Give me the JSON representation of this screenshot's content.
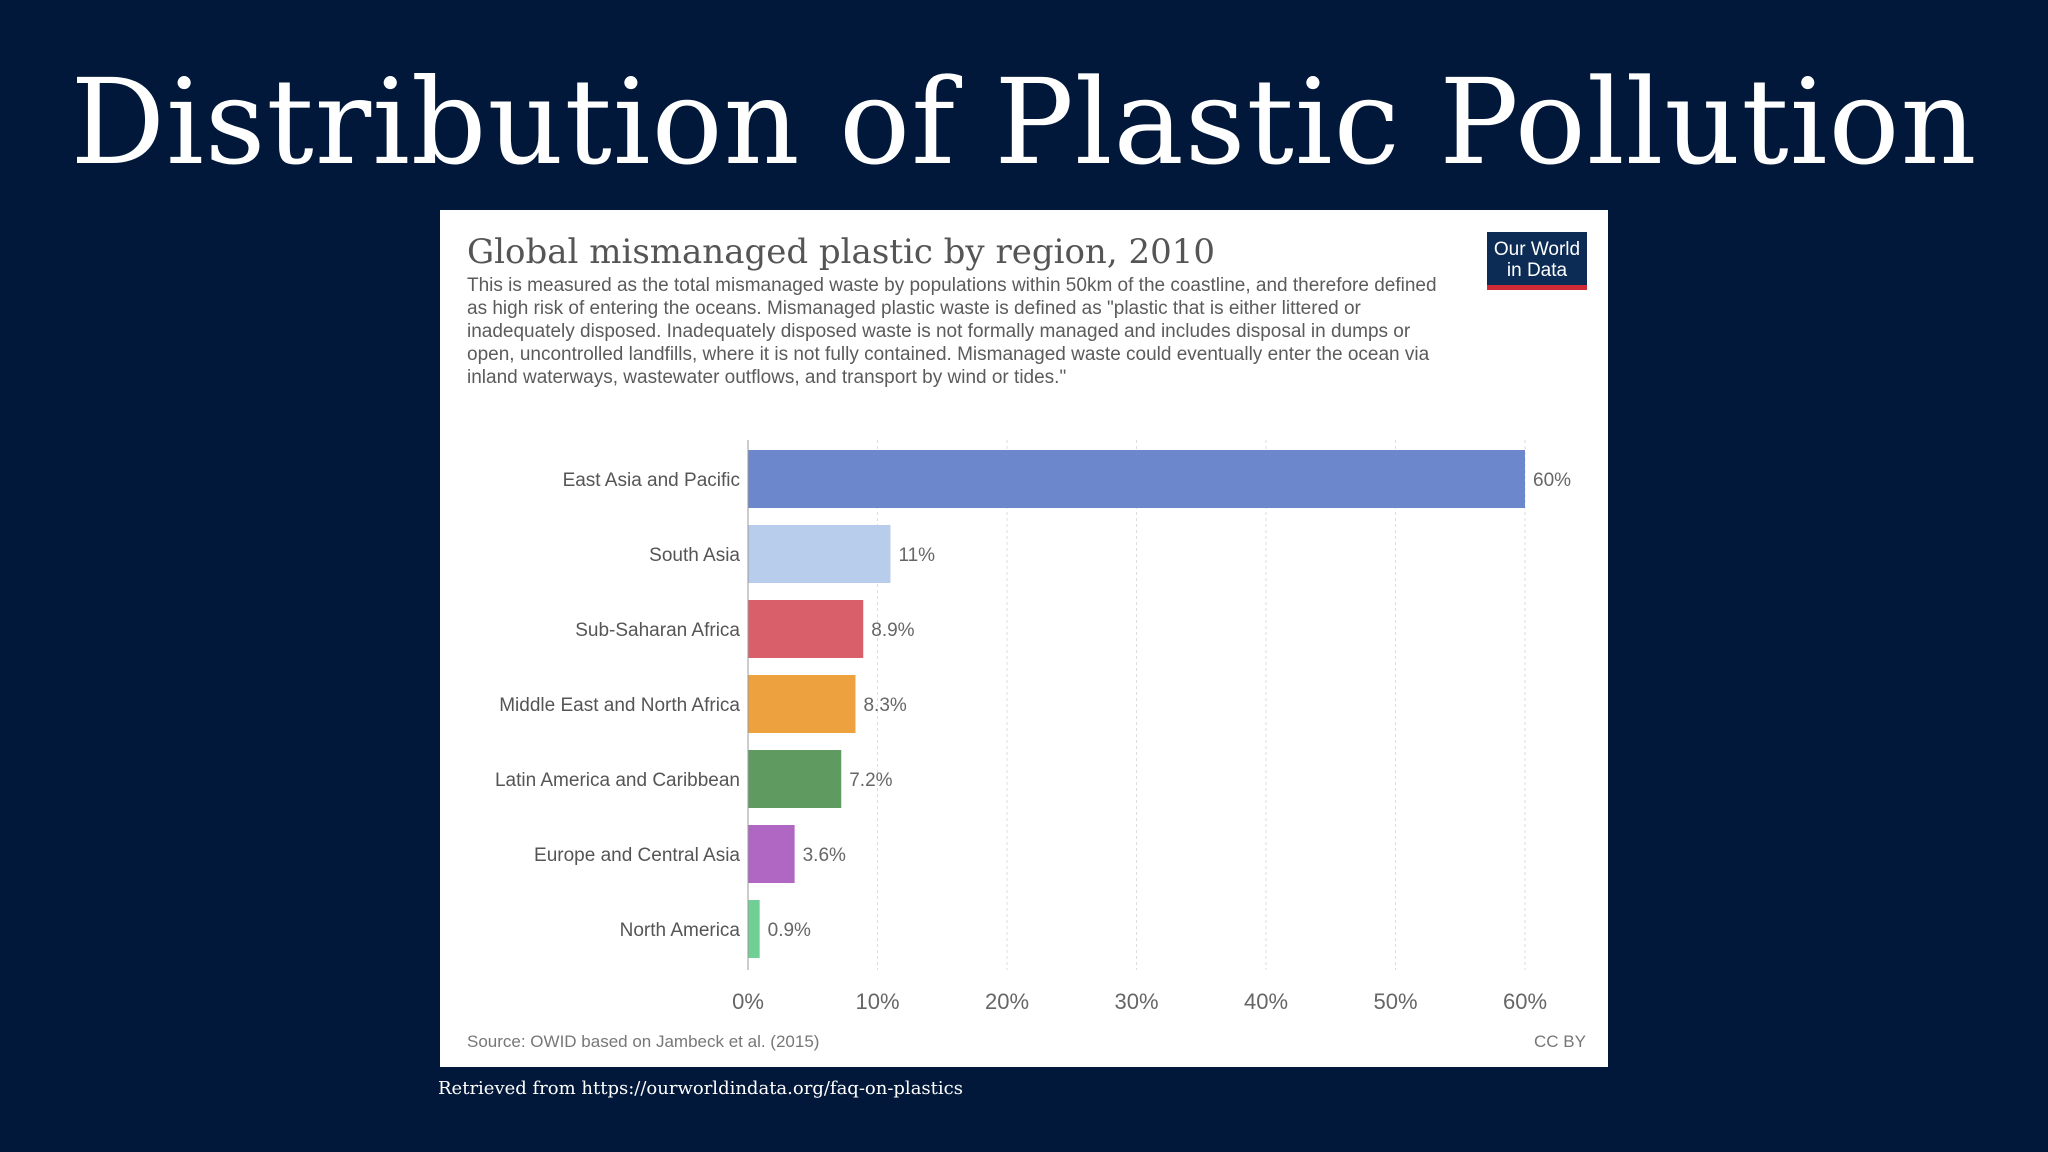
{
  "slide": {
    "title": "Distribution of Plastic Pollution",
    "retrieved_note": "Retrieved from https://ourworldindata.org/faq-on-plastics",
    "background_color": "#02183a"
  },
  "logo": {
    "line1": "Our World",
    "line2": "in Data"
  },
  "chart_data": {
    "type": "bar",
    "orientation": "horizontal",
    "title": "Global mismanaged plastic by region, 2010",
    "subtitle": "This is measured as the total mismanaged waste by populations within 50km of the coastline, and therefore defined as high risk of entering the oceans. Mismanaged plastic waste is defined as \"plastic that is either littered or inadequately disposed. Inadequately disposed waste is not formally managed and includes disposal in dumps or open, uncontrolled landfills, where it is not fully contained. Mismanaged waste could eventually enter the ocean via inland waterways, wastewater outflows, and transport by wind or tides.\"",
    "categories": [
      "East Asia and Pacific",
      "South Asia",
      "Sub-Saharan Africa",
      "Middle East and North Africa",
      "Latin America and Caribbean",
      "Europe and Central Asia",
      "North America"
    ],
    "values": [
      60,
      11,
      8.9,
      8.3,
      7.2,
      3.6,
      0.9
    ],
    "value_labels": [
      "60%",
      "11%",
      "8.9%",
      "8.3%",
      "7.2%",
      "3.6%",
      "0.9%"
    ],
    "colors": [
      "#6d87cc",
      "#b7cdeb",
      "#d9606b",
      "#eea13f",
      "#5f9a61",
      "#b067c4",
      "#6fcf94"
    ],
    "xlim": [
      0,
      60
    ],
    "xticks": [
      0,
      10,
      20,
      30,
      40,
      50,
      60
    ],
    "xtick_labels": [
      "0%",
      "10%",
      "20%",
      "30%",
      "40%",
      "50%",
      "60%"
    ],
    "grid": true,
    "source": "Source: OWID based on Jambeck et al. (2015)",
    "license": "CC BY"
  }
}
